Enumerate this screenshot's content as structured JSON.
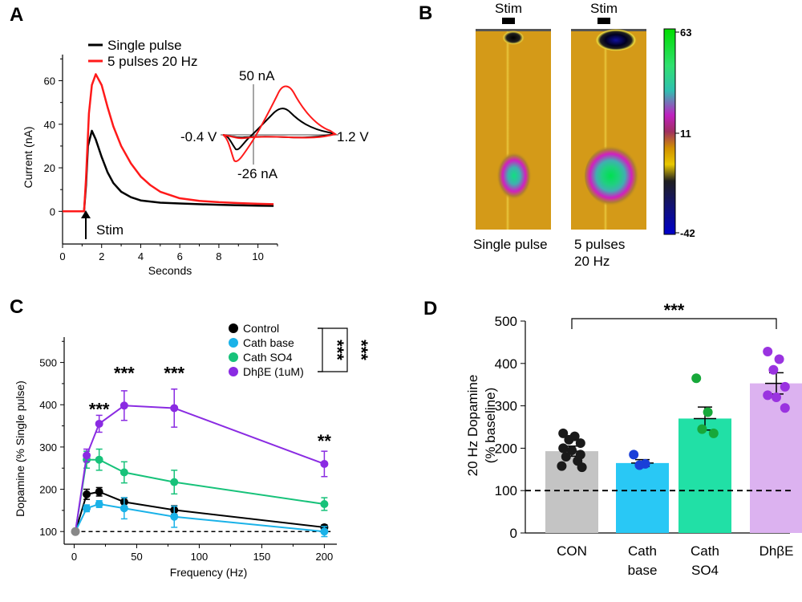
{
  "panels": {
    "A": "A",
    "B": "B",
    "C": "C",
    "D": "D"
  },
  "chart_data": [
    {
      "id": "A",
      "type": "line",
      "xlabel": "Seconds",
      "ylabel": "Current (nA)",
      "xlim": [
        0,
        11
      ],
      "ylim": [
        -15,
        72
      ],
      "xticks": [
        0,
        2,
        4,
        6,
        8,
        10
      ],
      "yticks": [
        0,
        20,
        40,
        60
      ],
      "series": [
        {
          "name": "Single pulse",
          "color": "#000000",
          "x": [
            0,
            1.0,
            1.1,
            1.2,
            1.3,
            1.5,
            1.7,
            2.0,
            2.3,
            2.6,
            3.0,
            3.5,
            4.0,
            5.0,
            6.0,
            7.0,
            8.0,
            9.0,
            10.0,
            10.8
          ],
          "y": [
            0,
            0,
            0,
            12,
            30,
            37,
            33,
            25,
            18,
            13,
            9,
            6.5,
            5,
            4,
            3.6,
            3.3,
            3.0,
            2.8,
            2.6,
            2.5
          ]
        },
        {
          "name": "5 pulses 20 Hz",
          "color": "#ff1a1a",
          "x": [
            0,
            1.0,
            1.1,
            1.2,
            1.35,
            1.5,
            1.7,
            2.0,
            2.3,
            2.6,
            3.0,
            3.5,
            4.0,
            4.5,
            5.0,
            6.0,
            7.0,
            8.0,
            9.0,
            10.0,
            10.8
          ],
          "y": [
            0,
            0,
            0,
            15,
            45,
            58,
            63,
            58,
            48,
            39,
            30,
            22,
            16,
            12,
            9,
            6,
            4.8,
            4.2,
            3.8,
            3.5,
            3.3
          ]
        }
      ],
      "annotation": "Stim",
      "inset": {
        "labels": {
          "top": "50 nA",
          "bottom": "-26 nA",
          "left": "-0.4 V",
          "right": "1.2 V"
        }
      }
    },
    {
      "id": "B",
      "type": "heatmap",
      "colorbar_ticks": [
        "63",
        "11",
        "-42"
      ],
      "stim_label": "Stim",
      "captions": [
        "Single pulse",
        "5 pulses",
        "20 Hz"
      ]
    },
    {
      "id": "C",
      "type": "line",
      "xlabel": "Frequency (Hz)",
      "ylabel": "Dopamine (% Single pulse)",
      "xlim": [
        -8,
        210
      ],
      "ylim": [
        70,
        560
      ],
      "xticks": [
        0,
        50,
        100,
        150,
        200
      ],
      "yticks": [
        100,
        200,
        300,
        400,
        500
      ],
      "x": [
        1,
        10,
        20,
        40,
        80,
        200
      ],
      "baseline": 100,
      "series": [
        {
          "name": "Control",
          "color": "#000000",
          "values": [
            100,
            188,
            194,
            170,
            151,
            110
          ],
          "errors": [
            0,
            12,
            10,
            10,
            10,
            6
          ]
        },
        {
          "name": "Cath base",
          "color": "#1ab2e8",
          "values": [
            100,
            155,
            165,
            155,
            135,
            100
          ],
          "errors": [
            0,
            8,
            8,
            25,
            25,
            12
          ]
        },
        {
          "name": "Cath SO4",
          "color": "#17c27a",
          "values": [
            100,
            270,
            270,
            240,
            217,
            165
          ],
          "errors": [
            0,
            20,
            25,
            25,
            28,
            15
          ]
        },
        {
          "name": "DhβE (1uM)",
          "color": "#8a2be2",
          "values": [
            100,
            280,
            355,
            398,
            392,
            260
          ],
          "errors": [
            0,
            15,
            20,
            35,
            45,
            30
          ]
        }
      ],
      "significance": [
        "***",
        "***",
        "***",
        "**"
      ],
      "legend_sig": [
        "***",
        "***"
      ]
    },
    {
      "id": "D",
      "type": "bar",
      "ylabel": "20 Hz Dopamine",
      "ylabel2": "(% baseline)",
      "ylim": [
        0,
        500
      ],
      "yticks": [
        0,
        100,
        200,
        300,
        400,
        500
      ],
      "baseline": 100,
      "categories": [
        {
          "line1": "CON",
          "line2": ""
        },
        {
          "line1": "Cath",
          "line2": "base"
        },
        {
          "line1": "Cath",
          "line2": "SO4"
        },
        {
          "line1": "DhβE",
          "line2": ""
        }
      ],
      "values": [
        193,
        165,
        270,
        353
      ],
      "errors": [
        12,
        8,
        27,
        25
      ],
      "bar_colors": [
        "#c4c4c4",
        "#29c8f5",
        "#21e0a6",
        "#dcb2f0"
      ],
      "dot_colors": [
        "#1a1a1a",
        "#1a3fd8",
        "#17a83a",
        "#9a33e0"
      ],
      "points": [
        [
          235,
          228,
          220,
          212,
          200,
          195,
          185,
          180,
          170,
          158,
          155
        ],
        [
          185,
          163,
          160
        ],
        [
          365,
          285,
          245,
          235
        ],
        [
          428,
          410,
          385,
          345,
          325,
          320,
          295
        ]
      ],
      "significance": "***"
    }
  ]
}
